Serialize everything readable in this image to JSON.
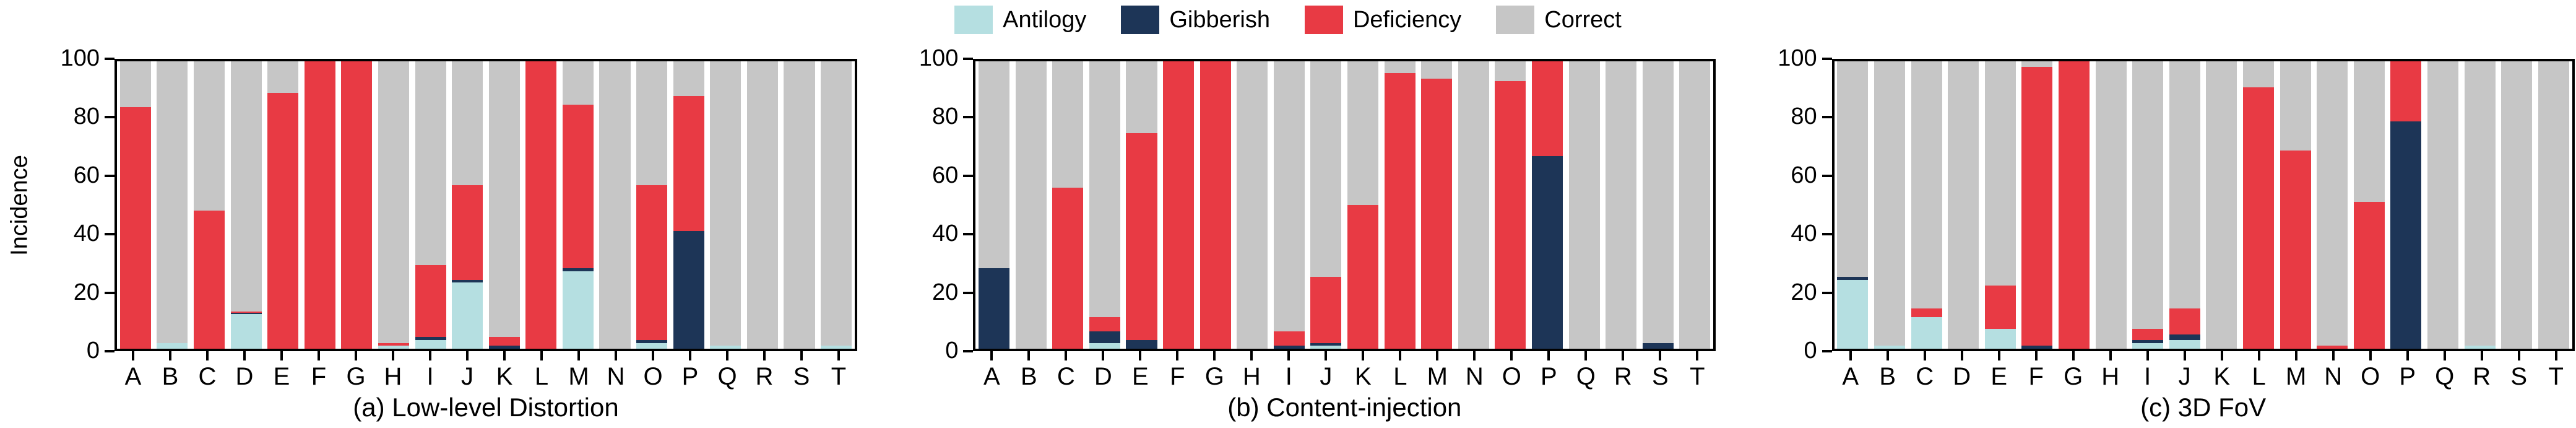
{
  "legend": [
    {
      "label": "Antilogy",
      "color": "#b5dfe1"
    },
    {
      "label": "Gibberish",
      "color": "#1d3557"
    },
    {
      "label": "Deficiency",
      "color": "#e83a44"
    },
    {
      "label": "Correct",
      "color": "#c6c6c6"
    }
  ],
  "ylabel": "Incidence",
  "yticks": [
    0,
    20,
    40,
    60,
    80,
    100
  ],
  "chart_data": [
    {
      "type": "bar",
      "stacked": true,
      "title": "(a) Low-level Distortion",
      "ylabel": "Incidence",
      "ylim": [
        0,
        100
      ],
      "grid": false,
      "legend_position": "top-center",
      "categories": [
        "A",
        "B",
        "C",
        "D",
        "E",
        "F",
        "G",
        "H",
        "I",
        "J",
        "K",
        "L",
        "M",
        "N",
        "O",
        "P",
        "Q",
        "R",
        "S",
        "T"
      ],
      "series": [
        {
          "name": "Antilogy",
          "values": [
            0,
            2,
            0,
            12,
            0,
            0,
            0,
            1,
            3,
            23,
            0,
            0,
            27,
            0,
            2,
            0,
            1,
            0,
            0,
            1
          ]
        },
        {
          "name": "Gibberish",
          "values": [
            0,
            0,
            0,
            0.5,
            0,
            0,
            0,
            0,
            1,
            1,
            1,
            0,
            1,
            0,
            1,
            41,
            0,
            0,
            0,
            0
          ]
        },
        {
          "name": "Deficiency",
          "values": [
            84,
            0,
            48,
            0.5,
            89,
            100,
            100,
            1,
            25,
            33,
            3,
            100,
            57,
            0,
            54,
            47,
            0,
            0,
            0,
            0
          ]
        },
        {
          "name": "Correct",
          "values": [
            16,
            98,
            52,
            87,
            11,
            0,
            0,
            98,
            71,
            43,
            96,
            0,
            15,
            100,
            43,
            12,
            99,
            100,
            100,
            99
          ]
        }
      ]
    },
    {
      "type": "bar",
      "stacked": true,
      "title": "(b) Content-injection",
      "ylim": [
        0,
        100
      ],
      "grid": false,
      "categories": [
        "A",
        "B",
        "C",
        "D",
        "E",
        "F",
        "G",
        "H",
        "I",
        "J",
        "K",
        "L",
        "M",
        "N",
        "O",
        "P",
        "Q",
        "R",
        "S",
        "T"
      ],
      "series": [
        {
          "name": "Antilogy",
          "values": [
            0,
            0,
            0,
            2,
            0,
            0,
            0,
            0,
            0,
            1,
            0,
            0,
            0,
            0,
            0,
            0,
            0,
            0,
            0,
            0
          ]
        },
        {
          "name": "Gibberish",
          "values": [
            28,
            0,
            0,
            4,
            3,
            0,
            0,
            0,
            1,
            1,
            0,
            0,
            0,
            0,
            0,
            67,
            0,
            0,
            2,
            0
          ]
        },
        {
          "name": "Deficiency",
          "values": [
            0,
            0,
            56,
            5,
            72,
            100,
            100,
            0,
            5,
            23,
            50,
            96,
            94,
            0,
            93,
            33,
            0,
            0,
            0,
            0
          ]
        },
        {
          "name": "Correct",
          "values": [
            72,
            100,
            44,
            89,
            25,
            0,
            0,
            100,
            94,
            75,
            50,
            4,
            6,
            100,
            7,
            0,
            100,
            100,
            98,
            100
          ]
        }
      ]
    },
    {
      "type": "bar",
      "stacked": true,
      "title": "(c) 3D FoV",
      "ylim": [
        0,
        100
      ],
      "grid": false,
      "categories": [
        "A",
        "B",
        "C",
        "D",
        "E",
        "F",
        "G",
        "H",
        "I",
        "J",
        "K",
        "L",
        "M",
        "N",
        "O",
        "P",
        "Q",
        "R",
        "S",
        "T"
      ],
      "series": [
        {
          "name": "Antilogy",
          "values": [
            24,
            1,
            11,
            0,
            7,
            0,
            0,
            0,
            2,
            3,
            0,
            0,
            0,
            0,
            0,
            0,
            0,
            1,
            0,
            0
          ]
        },
        {
          "name": "Gibberish",
          "values": [
            1,
            0,
            0,
            0,
            0,
            1,
            0,
            0,
            1,
            2,
            0,
            0,
            0,
            0,
            0,
            79,
            0,
            0,
            0,
            0
          ]
        },
        {
          "name": "Deficiency",
          "values": [
            0,
            0,
            3,
            0,
            15,
            97,
            100,
            0,
            4,
            9,
            0,
            91,
            69,
            1,
            51,
            21,
            0,
            0,
            0,
            0
          ]
        },
        {
          "name": "Correct",
          "values": [
            75,
            99,
            86,
            100,
            78,
            2,
            0,
            100,
            93,
            86,
            100,
            9,
            31,
            99,
            49,
            0,
            100,
            99,
            100,
            100
          ]
        }
      ]
    }
  ]
}
